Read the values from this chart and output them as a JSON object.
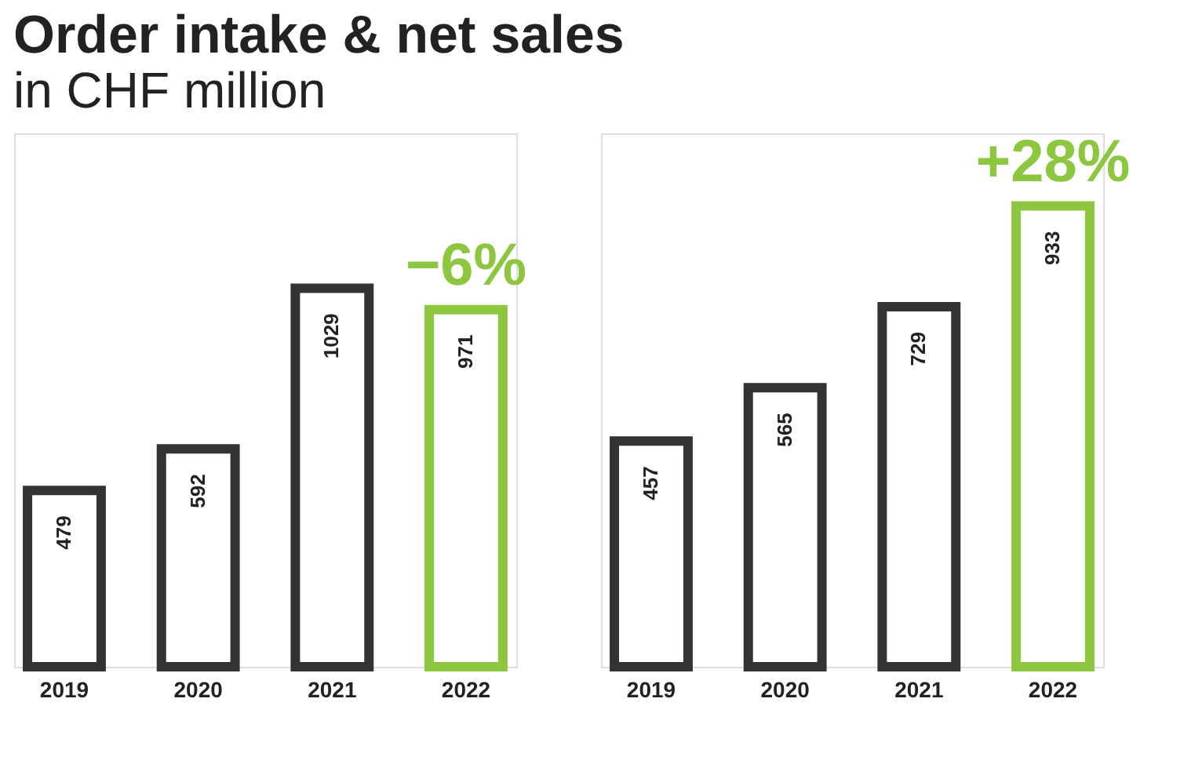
{
  "chart_data": [
    {
      "type": "bar",
      "title": "Order intake & net sales",
      "subtitle": "in CHF million",
      "categories": [
        "2019",
        "2020",
        "2021",
        "2022"
      ],
      "values": [
        479,
        592,
        1029,
        971
      ],
      "colors": [
        "#333333",
        "#333333",
        "#333333",
        "#8dc63f"
      ],
      "data_labels": true,
      "ylim": [
        0,
        1450
      ],
      "tick_labels": "x",
      "grid": false,
      "annotations": [
        {
          "text": "−6%",
          "x": "2022",
          "y": 971
        }
      ]
    },
    {
      "type": "bar",
      "categories": [
        "2019",
        "2020",
        "2021",
        "2022"
      ],
      "values": [
        457,
        565,
        729,
        933
      ],
      "colors": [
        "#333333",
        "#333333",
        "#333333",
        "#8dc63f"
      ],
      "data_labels": true,
      "ylim": [
        0,
        1080
      ],
      "tick_labels": "x",
      "grid": false,
      "annotations": [
        {
          "text": "+28%",
          "x": "2022",
          "y": 933
        }
      ]
    }
  ]
}
